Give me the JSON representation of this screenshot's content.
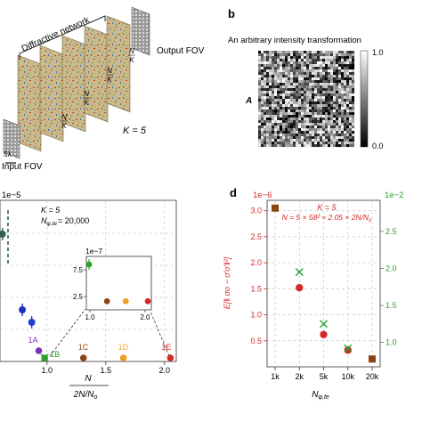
{
  "panel_a": {
    "labels": {
      "diffractive_network": "Diffractive network",
      "output_fov": "Output FOV",
      "input_fov": "Input FOV",
      "k": "K = 5",
      "scale": "5λ",
      "n_over_k_num": "N",
      "n_over_k_den": "K"
    }
  },
  "panel_b": {
    "letter": "b",
    "title": "An arbitrary intensity transformation",
    "matrix_label": "A",
    "colorbar_max": "1.0",
    "colorbar_min": "0.0"
  },
  "chart_data": [
    {
      "type": "scatter",
      "panel": "c",
      "exponent_label": "1e−5",
      "xlabel_num": "N",
      "xlabel_den": "2N/N",
      "xlabel_den_sub": "o",
      "annotation_k": "K = 5",
      "annotation_n": "N",
      "annotation_n_sub": "φ,te",
      "annotation_n_value": "= 20,000",
      "x_ticks": [
        "1.0",
        "1.5",
        "2.0"
      ],
      "x_range": [
        0.6,
        2.1
      ],
      "points": [
        {
          "name": "1A",
          "x": 0.93,
          "color": "#7b2fbf"
        },
        {
          "name": "1B",
          "x": 0.98,
          "color": "#2ca02c"
        },
        {
          "name": "1C",
          "x": 1.31,
          "color": "#8b4513"
        },
        {
          "name": "1D",
          "x": 1.65,
          "color": "#f0a020"
        },
        {
          "name": "1E",
          "x": 2.05,
          "color": "#d62728"
        }
      ],
      "other_points": [
        {
          "x": 0.62,
          "color": "#2f5f4f"
        },
        {
          "x": 0.79,
          "color": "#2030c0"
        },
        {
          "x": 0.87,
          "color": "#2040d0"
        }
      ],
      "inset": {
        "exponent_label": "1e−7",
        "y_ticks": [
          "7.5",
          "2.5"
        ],
        "x_ticks": [
          "1.0",
          "2.0"
        ],
        "x_range": [
          1.0,
          2.05
        ],
        "y_range": [
          0,
          10
        ],
        "points": [
          {
            "x": 0.98,
            "y": 8.5,
            "color": "#2ca02c"
          },
          {
            "x": 1.31,
            "y": 1.6,
            "color": "#8b4513"
          },
          {
            "x": 1.65,
            "y": 1.6,
            "color": "#f0a020"
          },
          {
            "x": 2.05,
            "y": 1.6,
            "color": "#d62728"
          }
        ]
      }
    },
    {
      "type": "scatter",
      "panel": "d",
      "letter": "d",
      "exponent_left": "1e−6",
      "exponent_right": "1e−2",
      "annotation_k": "K = 5",
      "annotation_n": "N = 5 × 58² ≈ 2.05 × 2N/N",
      "annotation_n_sub": "o",
      "ylabel_left": "E[‖ σo − σ′o′‖²]",
      "xlabel": "N",
      "xlabel_sub": "φ,te",
      "categories": [
        "1k",
        "2k",
        "5k",
        "10k",
        "20k"
      ],
      "y_left_ticks": [
        "0.5",
        "1.0",
        "1.5",
        "2.0",
        "2.5",
        "3.0"
      ],
      "y_left_range": [
        0.0,
        3.2
      ],
      "y_right_ticks": [
        "1.0",
        "1.5",
        "2.0",
        "2.5"
      ],
      "y_right_range": [
        0.67,
        2.92
      ],
      "series": [
        {
          "name": "left",
          "color": "#d62728",
          "marker": "circle",
          "values": [
            3.05,
            1.52,
            0.62,
            0.32,
            0.15
          ]
        },
        {
          "name": "right",
          "color": "#2ca02c",
          "marker": "x",
          "values": [
            null,
            1.95,
            1.25,
            0.92,
            null
          ]
        }
      ],
      "shared_point": {
        "category": "1k",
        "value": 3.05,
        "color": "#8b4513"
      },
      "shared_point_end": {
        "category": "20k",
        "value": 0.15,
        "color": "#8b4513"
      }
    }
  ]
}
